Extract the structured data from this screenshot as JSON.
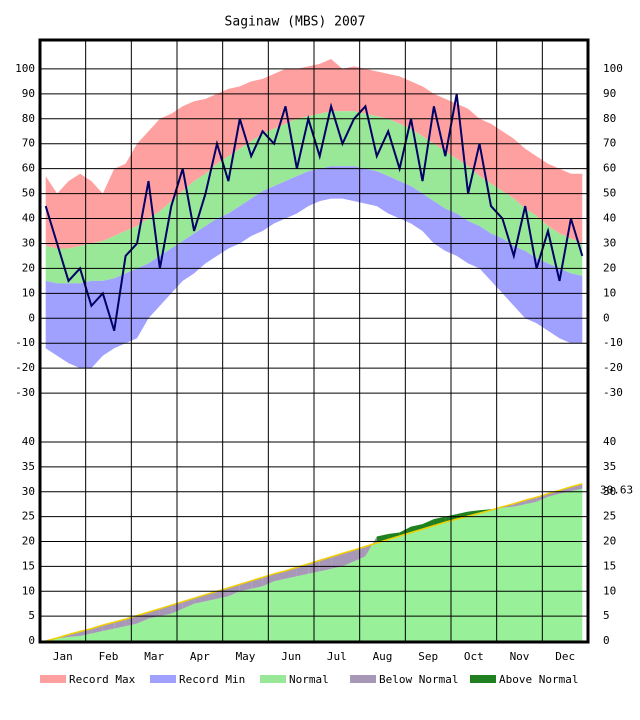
{
  "chart_data": [
    {
      "type": "temperature",
      "title": "Saginaw (MBS) 2007",
      "categories": [
        null,
        "Jan",
        null,
        null,
        null,
        "Feb",
        null,
        null,
        null,
        "Mar",
        null,
        null,
        null,
        "Apr",
        null,
        null,
        null,
        "May",
        null,
        null,
        null,
        "Jun",
        null,
        null,
        null,
        "Jul",
        null,
        null,
        null,
        "Aug",
        null,
        null,
        null,
        "Sep",
        null,
        null,
        null,
        "Oct",
        null,
        null,
        null,
        "Nov",
        null,
        null,
        null,
        "Dec",
        null,
        null
      ],
      "ylim": [
        -40,
        110
      ],
      "yticks": [
        -30,
        -20,
        -10,
        0,
        10,
        20,
        30,
        40,
        50,
        60,
        70,
        80,
        90,
        100
      ],
      "grid": true,
      "series": [
        {
          "name": "Record Max",
          "color": "#ffa0a0",
          "values": [
            57,
            50,
            55,
            58,
            55,
            50,
            60,
            62,
            70,
            75,
            80,
            82,
            85,
            87,
            88,
            90,
            92,
            93,
            95,
            96,
            98,
            100,
            100,
            101,
            102,
            104,
            100,
            101,
            100,
            99,
            98,
            97,
            95,
            93,
            90,
            88,
            86,
            84,
            80,
            78,
            75,
            72,
            68,
            65,
            62,
            60,
            58,
            58
          ]
        },
        {
          "name": "Record Min",
          "color": "#a0a0ff",
          "values": [
            -12,
            -15,
            -18,
            -20,
            -20,
            -15,
            -12,
            -10,
            -8,
            0,
            5,
            10,
            15,
            18,
            22,
            25,
            28,
            30,
            33,
            35,
            38,
            40,
            42,
            45,
            47,
            48,
            48,
            47,
            46,
            45,
            42,
            40,
            38,
            35,
            30,
            27,
            25,
            22,
            20,
            15,
            10,
            5,
            0,
            -2,
            -5,
            -8,
            -10,
            -10
          ]
        },
        {
          "name": "Normal",
          "color": "#98e898",
          "values": [
            29,
            28,
            28,
            29,
            30,
            31,
            33,
            35,
            37,
            40,
            43,
            47,
            51,
            55,
            58,
            62,
            65,
            68,
            71,
            74,
            76,
            78,
            80,
            81,
            82,
            83,
            83,
            83,
            82,
            81,
            80,
            78,
            76,
            73,
            70,
            67,
            64,
            61,
            57,
            54,
            51,
            48,
            44,
            41,
            37,
            34,
            32,
            30
          ],
          "low": [
            15,
            14,
            14,
            14,
            15,
            15,
            16,
            18,
            20,
            22,
            25,
            28,
            31,
            34,
            37,
            40,
            42,
            45,
            48,
            51,
            53,
            55,
            57,
            59,
            60,
            61,
            61,
            61,
            60,
            59,
            57,
            55,
            53,
            50,
            47,
            44,
            42,
            39,
            37,
            34,
            32,
            29,
            27,
            24,
            22,
            20,
            18,
            17
          ]
        }
      ],
      "observed": {
        "color": "#000066",
        "values": [
          45,
          30,
          15,
          20,
          5,
          10,
          -5,
          25,
          30,
          55,
          20,
          45,
          60,
          35,
          50,
          70,
          55,
          80,
          65,
          75,
          70,
          85,
          60,
          80,
          65,
          85,
          70,
          80,
          85,
          65,
          75,
          60,
          80,
          55,
          85,
          65,
          90,
          50,
          70,
          45,
          40,
          25,
          45,
          20,
          35,
          15,
          40,
          25
        ]
      }
    },
    {
      "type": "precipitation",
      "categories": [
        null,
        "Jan",
        null,
        null,
        null,
        "Feb",
        null,
        null,
        null,
        "Mar",
        null,
        null,
        null,
        "Apr",
        null,
        null,
        null,
        "May",
        null,
        null,
        null,
        "Jun",
        null,
        null,
        null,
        "Jul",
        null,
        null,
        null,
        "Aug",
        null,
        null,
        null,
        "Sep",
        null,
        null,
        null,
        "Oct",
        null,
        null,
        null,
        "Nov",
        null,
        null,
        null,
        "Dec",
        null,
        null
      ],
      "ylim": [
        0,
        40
      ],
      "yticks": [
        0,
        5,
        10,
        15,
        20,
        25,
        30,
        35,
        40
      ],
      "grid": true,
      "normal": {
        "color": "#f0d000",
        "values": [
          0,
          0.6,
          1.3,
          1.9,
          2.5,
          3.2,
          3.8,
          4.4,
          5.1,
          5.8,
          6.5,
          7.2,
          7.9,
          8.6,
          9.3,
          10.0,
          10.7,
          11.4,
          12.1,
          12.8,
          13.5,
          14.1,
          14.8,
          15.5,
          16.2,
          16.9,
          17.6,
          18.3,
          19.0,
          19.7,
          20.4,
          21.1,
          21.8,
          22.5,
          23.2,
          23.9,
          24.5,
          25.1,
          25.7,
          26.3,
          27.0,
          27.6,
          28.3,
          28.9,
          29.6,
          30.3,
          31.0,
          31.6
        ]
      },
      "actual": {
        "color": "#98f098",
        "values": [
          0,
          0.5,
          0.8,
          1.0,
          1.5,
          2.0,
          2.5,
          3.0,
          3.5,
          4.5,
          5.0,
          5.5,
          6.5,
          7.5,
          8.0,
          8.5,
          9.0,
          10.0,
          10.5,
          11.0,
          12.0,
          12.5,
          13.0,
          13.5,
          14.0,
          14.5,
          15.0,
          16.0,
          17.0,
          21.0,
          21.5,
          21.8,
          23.0,
          23.5,
          24.5,
          25.0,
          25.5,
          26.0,
          26.3,
          26.5,
          26.8,
          27.0,
          27.5,
          28.0,
          29.0,
          29.6,
          30.1,
          30.63
        ],
        "value_labels": {
          "47": "30.63"
        }
      },
      "legend": [
        {
          "name": "Below Normal",
          "color": "#a898b8"
        },
        {
          "name": "Above Normal",
          "color": "#208020"
        }
      ]
    }
  ]
}
